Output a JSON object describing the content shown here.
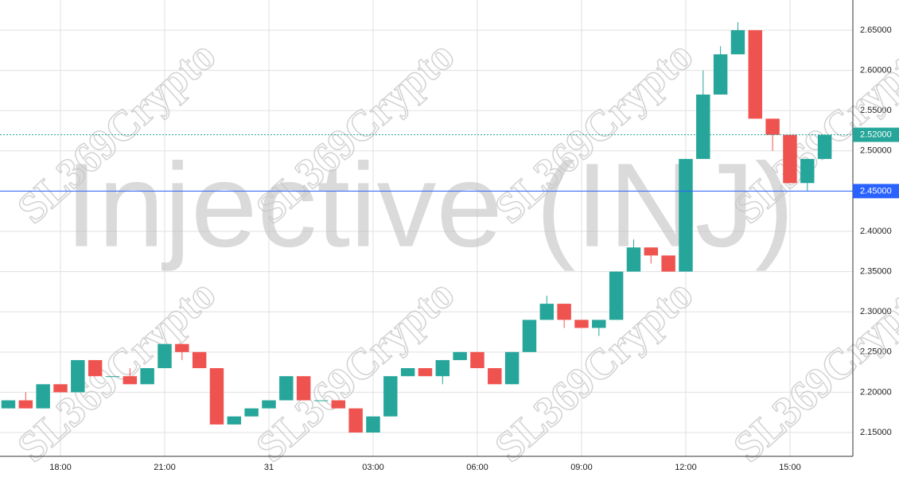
{
  "chart_data": {
    "type": "candlestick",
    "watermark": "Injective (INJ)",
    "brand": "SL369Crypto",
    "x": [
      16.5,
      17,
      17.5,
      18,
      18.5,
      19,
      19.5,
      20,
      20.5,
      21,
      21.5,
      22,
      22.5,
      23,
      23.5,
      24,
      24.5,
      25,
      25.5,
      26,
      26.5,
      27,
      27.5,
      28,
      28.5,
      29,
      29.5,
      30,
      30.5,
      31,
      31.5,
      32,
      32.5,
      33,
      33.5,
      34,
      34.5,
      35,
      35.5,
      36,
      36.5,
      37,
      37.5,
      38,
      38.5,
      39,
      39.5,
      40
    ],
    "open": [
      2.18,
      2.19,
      2.18,
      2.21,
      2.2,
      2.24,
      2.22,
      2.22,
      2.21,
      2.23,
      2.26,
      2.25,
      2.23,
      2.16,
      2.17,
      2.18,
      2.19,
      2.22,
      2.19,
      2.19,
      2.18,
      2.15,
      2.17,
      2.22,
      2.23,
      2.22,
      2.24,
      2.25,
      2.23,
      2.21,
      2.25,
      2.29,
      2.31,
      2.29,
      2.28,
      2.29,
      2.35,
      2.38,
      2.37,
      2.35,
      2.49,
      2.57,
      2.62,
      2.65,
      2.54,
      2.52,
      2.46,
      2.49
    ],
    "high": [
      2.19,
      2.2,
      2.21,
      2.21,
      2.24,
      2.24,
      2.22,
      2.23,
      2.23,
      2.26,
      2.26,
      2.25,
      2.23,
      2.17,
      2.18,
      2.19,
      2.22,
      2.22,
      2.19,
      2.19,
      2.18,
      2.17,
      2.22,
      2.23,
      2.23,
      2.24,
      2.25,
      2.25,
      2.23,
      2.25,
      2.29,
      2.32,
      2.31,
      2.29,
      2.29,
      2.35,
      2.39,
      2.38,
      2.37,
      2.49,
      2.6,
      2.63,
      2.66,
      2.65,
      2.54,
      2.52,
      2.49,
      2.52
    ],
    "low": [
      2.18,
      2.18,
      2.18,
      2.2,
      2.2,
      2.22,
      2.22,
      2.21,
      2.21,
      2.23,
      2.24,
      2.23,
      2.16,
      2.16,
      2.17,
      2.18,
      2.19,
      2.19,
      2.19,
      2.18,
      2.15,
      2.15,
      2.17,
      2.22,
      2.22,
      2.21,
      2.24,
      2.23,
      2.21,
      2.21,
      2.25,
      2.29,
      2.28,
      2.28,
      2.27,
      2.29,
      2.35,
      2.36,
      2.35,
      2.35,
      2.49,
      2.57,
      2.62,
      2.54,
      2.5,
      2.46,
      2.45,
      2.49
    ],
    "close": [
      2.19,
      2.18,
      2.21,
      2.2,
      2.24,
      2.22,
      2.22,
      2.21,
      2.23,
      2.26,
      2.25,
      2.23,
      2.16,
      2.17,
      2.18,
      2.19,
      2.22,
      2.19,
      2.19,
      2.18,
      2.15,
      2.17,
      2.22,
      2.23,
      2.22,
      2.24,
      2.25,
      2.23,
      2.21,
      2.25,
      2.29,
      2.31,
      2.29,
      2.28,
      2.29,
      2.35,
      2.38,
      2.37,
      2.35,
      2.49,
      2.57,
      2.62,
      2.65,
      2.54,
      2.52,
      2.46,
      2.49,
      2.52
    ],
    "up_color": "#26a69a",
    "down_color": "#ef5350",
    "xlim": [
      16.26,
      40.81
    ],
    "xticks": [
      {
        "value": 18,
        "label": "18:00"
      },
      {
        "value": 21,
        "label": "21:00"
      },
      {
        "value": 24,
        "label": "31"
      },
      {
        "value": 27,
        "label": "03:00"
      },
      {
        "value": 30,
        "label": "06:00"
      },
      {
        "value": 33,
        "label": "09:00"
      },
      {
        "value": 36,
        "label": "12:00"
      },
      {
        "value": 39,
        "label": "15:00"
      }
    ],
    "ylim": [
      2.1204,
      2.6875
    ],
    "yticks": [
      {
        "value": 2.15,
        "label": "2.15000"
      },
      {
        "value": 2.2,
        "label": "2.20000"
      },
      {
        "value": 2.25,
        "label": "2.25000"
      },
      {
        "value": 2.3,
        "label": "2.30000"
      },
      {
        "value": 2.35,
        "label": "2.35000"
      },
      {
        "value": 2.4,
        "label": "2.40000"
      },
      {
        "value": 2.45,
        "label": "2.45000"
      },
      {
        "value": 2.5,
        "label": "2.50000"
      },
      {
        "value": 2.55,
        "label": "2.55000"
      },
      {
        "value": 2.6,
        "label": "2.60000"
      },
      {
        "value": 2.65,
        "label": "2.65000"
      }
    ],
    "price_lines": [
      {
        "value": 2.52,
        "label": "2.52000",
        "color": "#26a69a",
        "style": "dotted"
      },
      {
        "value": 2.45,
        "label": "2.45000",
        "color": "#2962ff",
        "style": "solid"
      }
    ],
    "grid": true
  }
}
